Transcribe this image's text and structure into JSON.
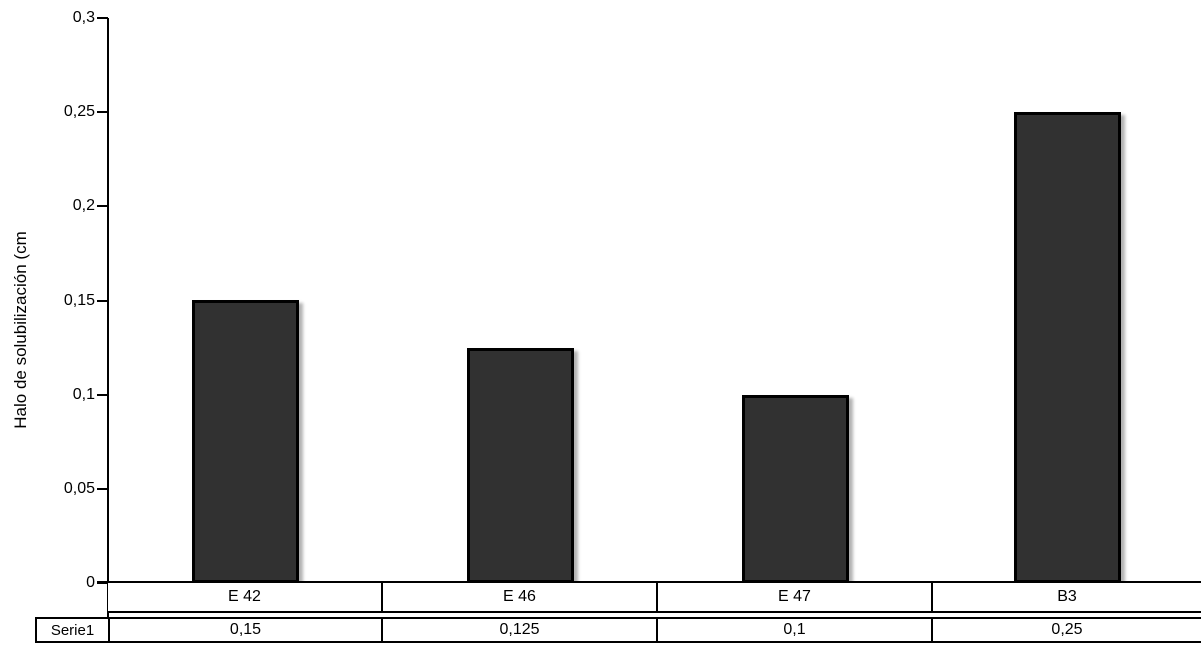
{
  "chart_data": {
    "type": "bar",
    "title": "",
    "xlabel": "",
    "ylabel": "Halo de solubilización (cm",
    "categories": [
      "E 42",
      "E 46",
      "E 47",
      "B3"
    ],
    "series": [
      {
        "name": "Serie1",
        "values": [
          0.15,
          0.125,
          0.1,
          0.25
        ],
        "value_labels": [
          "0,15",
          "0,125",
          "0,1",
          "0,25"
        ]
      }
    ],
    "ylim": [
      0,
      0.3
    ],
    "yticks": [
      {
        "value": 0,
        "label": "0"
      },
      {
        "value": 0.05,
        "label": "0,05"
      },
      {
        "value": 0.1,
        "label": "0,1"
      },
      {
        "value": 0.15,
        "label": "0,15"
      },
      {
        "value": 0.2,
        "label": "0,2"
      },
      {
        "value": 0.25,
        "label": "0,25"
      },
      {
        "value": 0.3,
        "label": "0,3"
      }
    ],
    "grid": false,
    "legend_position": "data-table-below",
    "decimal_separator": ",",
    "bar_fill_color": "#313131",
    "bar_border_color": "#000000",
    "axis_color": "#000000",
    "background_color": "#ffffff"
  }
}
